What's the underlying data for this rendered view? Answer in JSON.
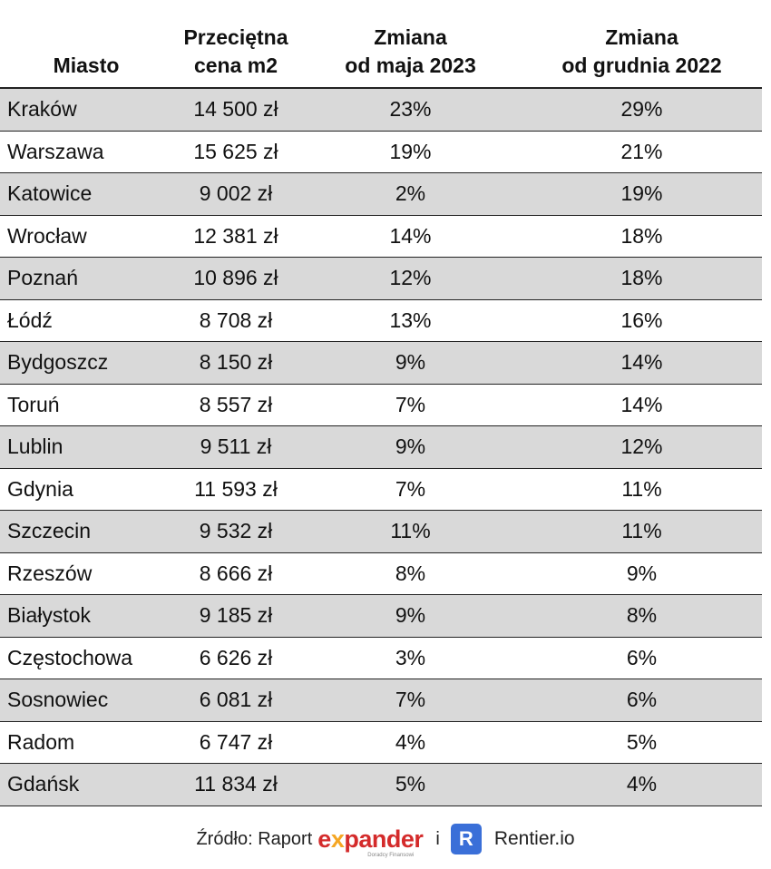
{
  "chart_data": {
    "type": "table",
    "columns": [
      {
        "line1": "",
        "line2": "Miasto"
      },
      {
        "line1": "Przeciętna",
        "line2": "cena m2"
      },
      {
        "line1": "Zmiana",
        "line2": "od maja 2023"
      },
      {
        "line1": "Zmiana",
        "line2": "od grudnia 2022"
      }
    ],
    "rows": [
      {
        "city": "Kraków",
        "price": "14 500 zł",
        "since_may_2023": "23%",
        "since_dec_2022": "29%"
      },
      {
        "city": "Warszawa",
        "price": "15 625 zł",
        "since_may_2023": "19%",
        "since_dec_2022": "21%"
      },
      {
        "city": "Katowice",
        "price": "9 002 zł",
        "since_may_2023": "2%",
        "since_dec_2022": "19%"
      },
      {
        "city": "Wrocław",
        "price": "12 381 zł",
        "since_may_2023": "14%",
        "since_dec_2022": "18%"
      },
      {
        "city": "Poznań",
        "price": "10 896 zł",
        "since_may_2023": "12%",
        "since_dec_2022": "18%"
      },
      {
        "city": "Łódź",
        "price": "8 708 zł",
        "since_may_2023": "13%",
        "since_dec_2022": "16%"
      },
      {
        "city": "Bydgoszcz",
        "price": "8 150 zł",
        "since_may_2023": "9%",
        "since_dec_2022": "14%"
      },
      {
        "city": "Toruń",
        "price": "8 557 zł",
        "since_may_2023": "7%",
        "since_dec_2022": "14%"
      },
      {
        "city": "Lublin",
        "price": "9 511 zł",
        "since_may_2023": "9%",
        "since_dec_2022": "12%"
      },
      {
        "city": "Gdynia",
        "price": "11 593 zł",
        "since_may_2023": "7%",
        "since_dec_2022": "11%"
      },
      {
        "city": "Szczecin",
        "price": "9 532 zł",
        "since_may_2023": "11%",
        "since_dec_2022": "11%"
      },
      {
        "city": "Rzeszów",
        "price": "8 666 zł",
        "since_may_2023": "8%",
        "since_dec_2022": "9%"
      },
      {
        "city": "Białystok",
        "price": "9 185 zł",
        "since_may_2023": "9%",
        "since_dec_2022": "8%"
      },
      {
        "city": "Częstochowa",
        "price": "6 626 zł",
        "since_may_2023": "3%",
        "since_dec_2022": "6%"
      },
      {
        "city": "Sosnowiec",
        "price": "6 081 zł",
        "since_may_2023": "7%",
        "since_dec_2022": "6%"
      },
      {
        "city": "Radom",
        "price": "6 747 zł",
        "since_may_2023": "4%",
        "since_dec_2022": "5%"
      },
      {
        "city": "Gdańsk",
        "price": "11 834 zł",
        "since_may_2023": "5%",
        "since_dec_2022": "4%"
      }
    ],
    "row_shading": "alternating gray rows starting with first"
  },
  "source": {
    "label": "Źródło: Raport",
    "expander_pre": "e",
    "expander_x": "x",
    "expander_post": "pander",
    "expander_tagline": "Doradcy Finansowi",
    "conjunction": "i",
    "r_logo": "R",
    "rentier": "Rentier.io"
  },
  "colors": {
    "shaded_row": "#d9d9d9",
    "expander_red": "#d42b2b",
    "expander_orange": "#f5a623",
    "rentier_blue": "#3a6fd8"
  }
}
